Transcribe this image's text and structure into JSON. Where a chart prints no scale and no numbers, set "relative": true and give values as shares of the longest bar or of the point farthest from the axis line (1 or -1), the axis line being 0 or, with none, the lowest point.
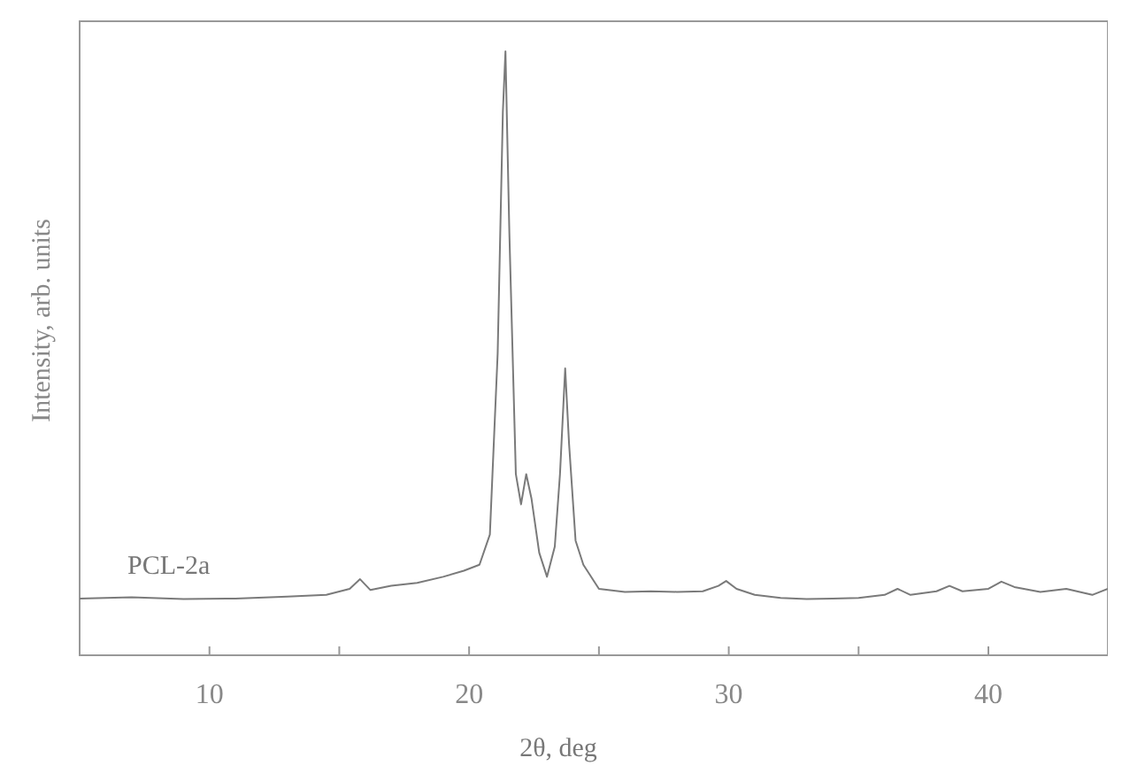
{
  "chart_data": {
    "type": "line",
    "relative": true,
    "xlabel": "2θ, deg",
    "ylabel": "Intensity, arb. units",
    "xlim": [
      5,
      44.6
    ],
    "xticks": [
      {
        "value": 10,
        "label": "10"
      },
      {
        "value": 15,
        "label": null
      },
      {
        "value": 20,
        "label": "20"
      },
      {
        "value": 25,
        "label": null
      },
      {
        "value": 30,
        "label": "30"
      },
      {
        "value": 35,
        "label": null
      },
      {
        "value": 40,
        "label": "40"
      }
    ],
    "series": [
      {
        "name": "PCL-2a",
        "color": "#7a7a7a",
        "x": [
          5,
          7,
          9,
          11,
          13,
          14.5,
          15.4,
          15.8,
          16.2,
          17,
          18,
          19,
          19.8,
          20.4,
          20.8,
          21.1,
          21.3,
          21.4,
          21.55,
          21.8,
          22.0,
          22.2,
          22.4,
          22.7,
          23.0,
          23.3,
          23.5,
          23.7,
          23.85,
          24.1,
          24.4,
          25,
          26,
          27,
          28,
          29,
          29.6,
          29.9,
          30.3,
          31,
          32,
          33,
          34,
          35,
          36,
          36.5,
          37,
          38,
          38.5,
          39,
          40,
          40.5,
          41,
          42,
          43,
          44,
          44.6
        ],
        "values": [
          0.094,
          0.096,
          0.093,
          0.094,
          0.097,
          0.1,
          0.11,
          0.126,
          0.108,
          0.115,
          0.12,
          0.13,
          0.14,
          0.15,
          0.2,
          0.5,
          0.9,
          1.0,
          0.7,
          0.3,
          0.25,
          0.3,
          0.26,
          0.17,
          0.13,
          0.18,
          0.3,
          0.475,
          0.35,
          0.19,
          0.15,
          0.11,
          0.105,
          0.106,
          0.105,
          0.106,
          0.115,
          0.123,
          0.11,
          0.1,
          0.095,
          0.093,
          0.094,
          0.095,
          0.1,
          0.11,
          0.1,
          0.106,
          0.115,
          0.106,
          0.11,
          0.122,
          0.113,
          0.105,
          0.11,
          0.1,
          0.11
        ]
      }
    ]
  }
}
